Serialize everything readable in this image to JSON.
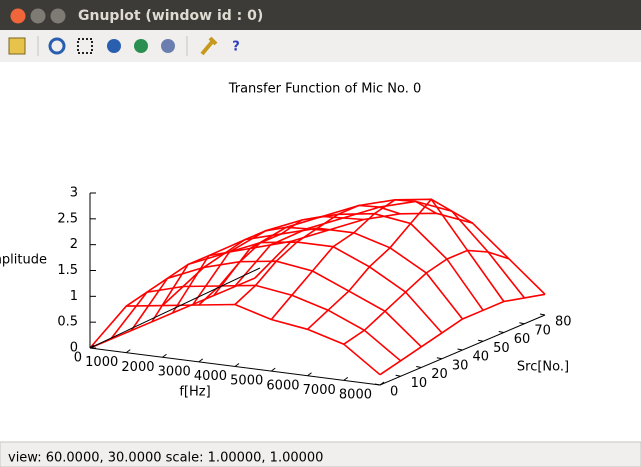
{
  "window": {
    "title": "Gnuplot (window id : 0)"
  },
  "status": "view: 60.0000,  30.0000  scale: 1.00000,  1.00000",
  "chart_data": {
    "type": "surface3d",
    "title": "Transfer Function of Mic No. 0",
    "xlabel": "f[Hz]",
    "ylabel": "Src[No.]",
    "zlabel": "Amplitude",
    "color": "#ff0000",
    "x": [
      0,
      1000,
      2000,
      3000,
      4000,
      5000,
      6000,
      7000,
      8000
    ],
    "y": [
      0,
      10,
      20,
      30,
      40,
      50,
      60,
      70,
      80
    ],
    "z": [
      [
        0.0,
        0.9,
        1.0,
        1.1,
        1.2,
        1.0,
        0.9,
        0.7,
        0.2
      ],
      [
        0.0,
        1.0,
        1.2,
        1.3,
        1.4,
        1.3,
        1.1,
        0.8,
        0.3
      ],
      [
        0.0,
        1.1,
        1.4,
        1.6,
        1.7,
        1.6,
        1.3,
        1.0,
        0.4
      ],
      [
        0.0,
        1.2,
        1.5,
        1.8,
        1.9,
        1.9,
        1.6,
        1.2,
        0.5
      ],
      [
        0.0,
        1.2,
        1.6,
        1.8,
        2.0,
        2.0,
        1.8,
        1.4,
        0.6
      ],
      [
        0.0,
        1.1,
        1.6,
        1.9,
        2.1,
        2.2,
        2.1,
        1.5,
        0.6
      ],
      [
        0.0,
        1.0,
        1.5,
        1.8,
        2.1,
        2.3,
        2.4,
        1.5,
        0.6
      ],
      [
        0.0,
        0.9,
        1.3,
        1.6,
        1.9,
        2.1,
        2.0,
        1.3,
        0.5
      ],
      [
        0.0,
        0.8,
        1.1,
        1.4,
        1.6,
        1.7,
        1.6,
        1.0,
        0.4
      ]
    ],
    "xlim": [
      0,
      8000
    ],
    "ylim": [
      0,
      80
    ],
    "zlim": [
      0,
      3
    ],
    "xticks": [
      0,
      1000,
      2000,
      3000,
      4000,
      5000,
      6000,
      7000,
      8000
    ],
    "yticks": [
      0,
      10,
      20,
      30,
      40,
      50,
      60,
      70,
      80
    ],
    "zticks": [
      0,
      0.5,
      1,
      1.5,
      2,
      2.5,
      3
    ]
  }
}
